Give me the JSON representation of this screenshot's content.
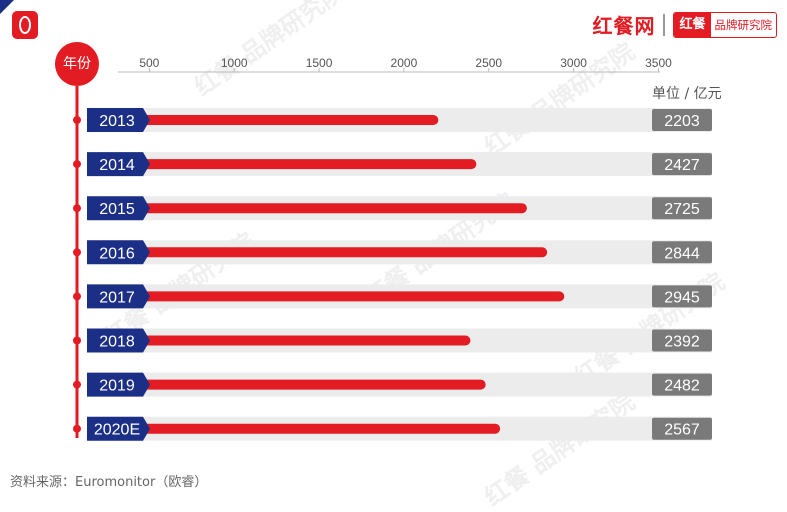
{
  "header": {
    "brand_main": "红餐网",
    "brand_sub_a": "红餐",
    "brand_sub_b": "品牌研究院"
  },
  "watermark_text": "红餐 品牌研究院",
  "source_text": "资料来源：Euromonitor（欧睿）",
  "colors": {
    "bar": "#e31b23",
    "track": "#ececec",
    "year_badge": "#1c2f87",
    "value_badge": "#7a7a7a",
    "axis": "#e31b23"
  },
  "chart_data": {
    "type": "bar",
    "orientation": "horizontal",
    "y_axis_title": "年份",
    "unit": "单位 / 亿元",
    "categories": [
      "2013",
      "2014",
      "2015",
      "2016",
      "2017",
      "2018",
      "2019",
      "2020E"
    ],
    "values": [
      2203,
      2427,
      2725,
      2844,
      2945,
      2392,
      2482,
      2567
    ],
    "x_ticks": [
      500,
      1000,
      1500,
      2000,
      2500,
      3000,
      3500
    ],
    "xlim": [
      0,
      3500
    ],
    "grid": false,
    "legend": "none"
  }
}
